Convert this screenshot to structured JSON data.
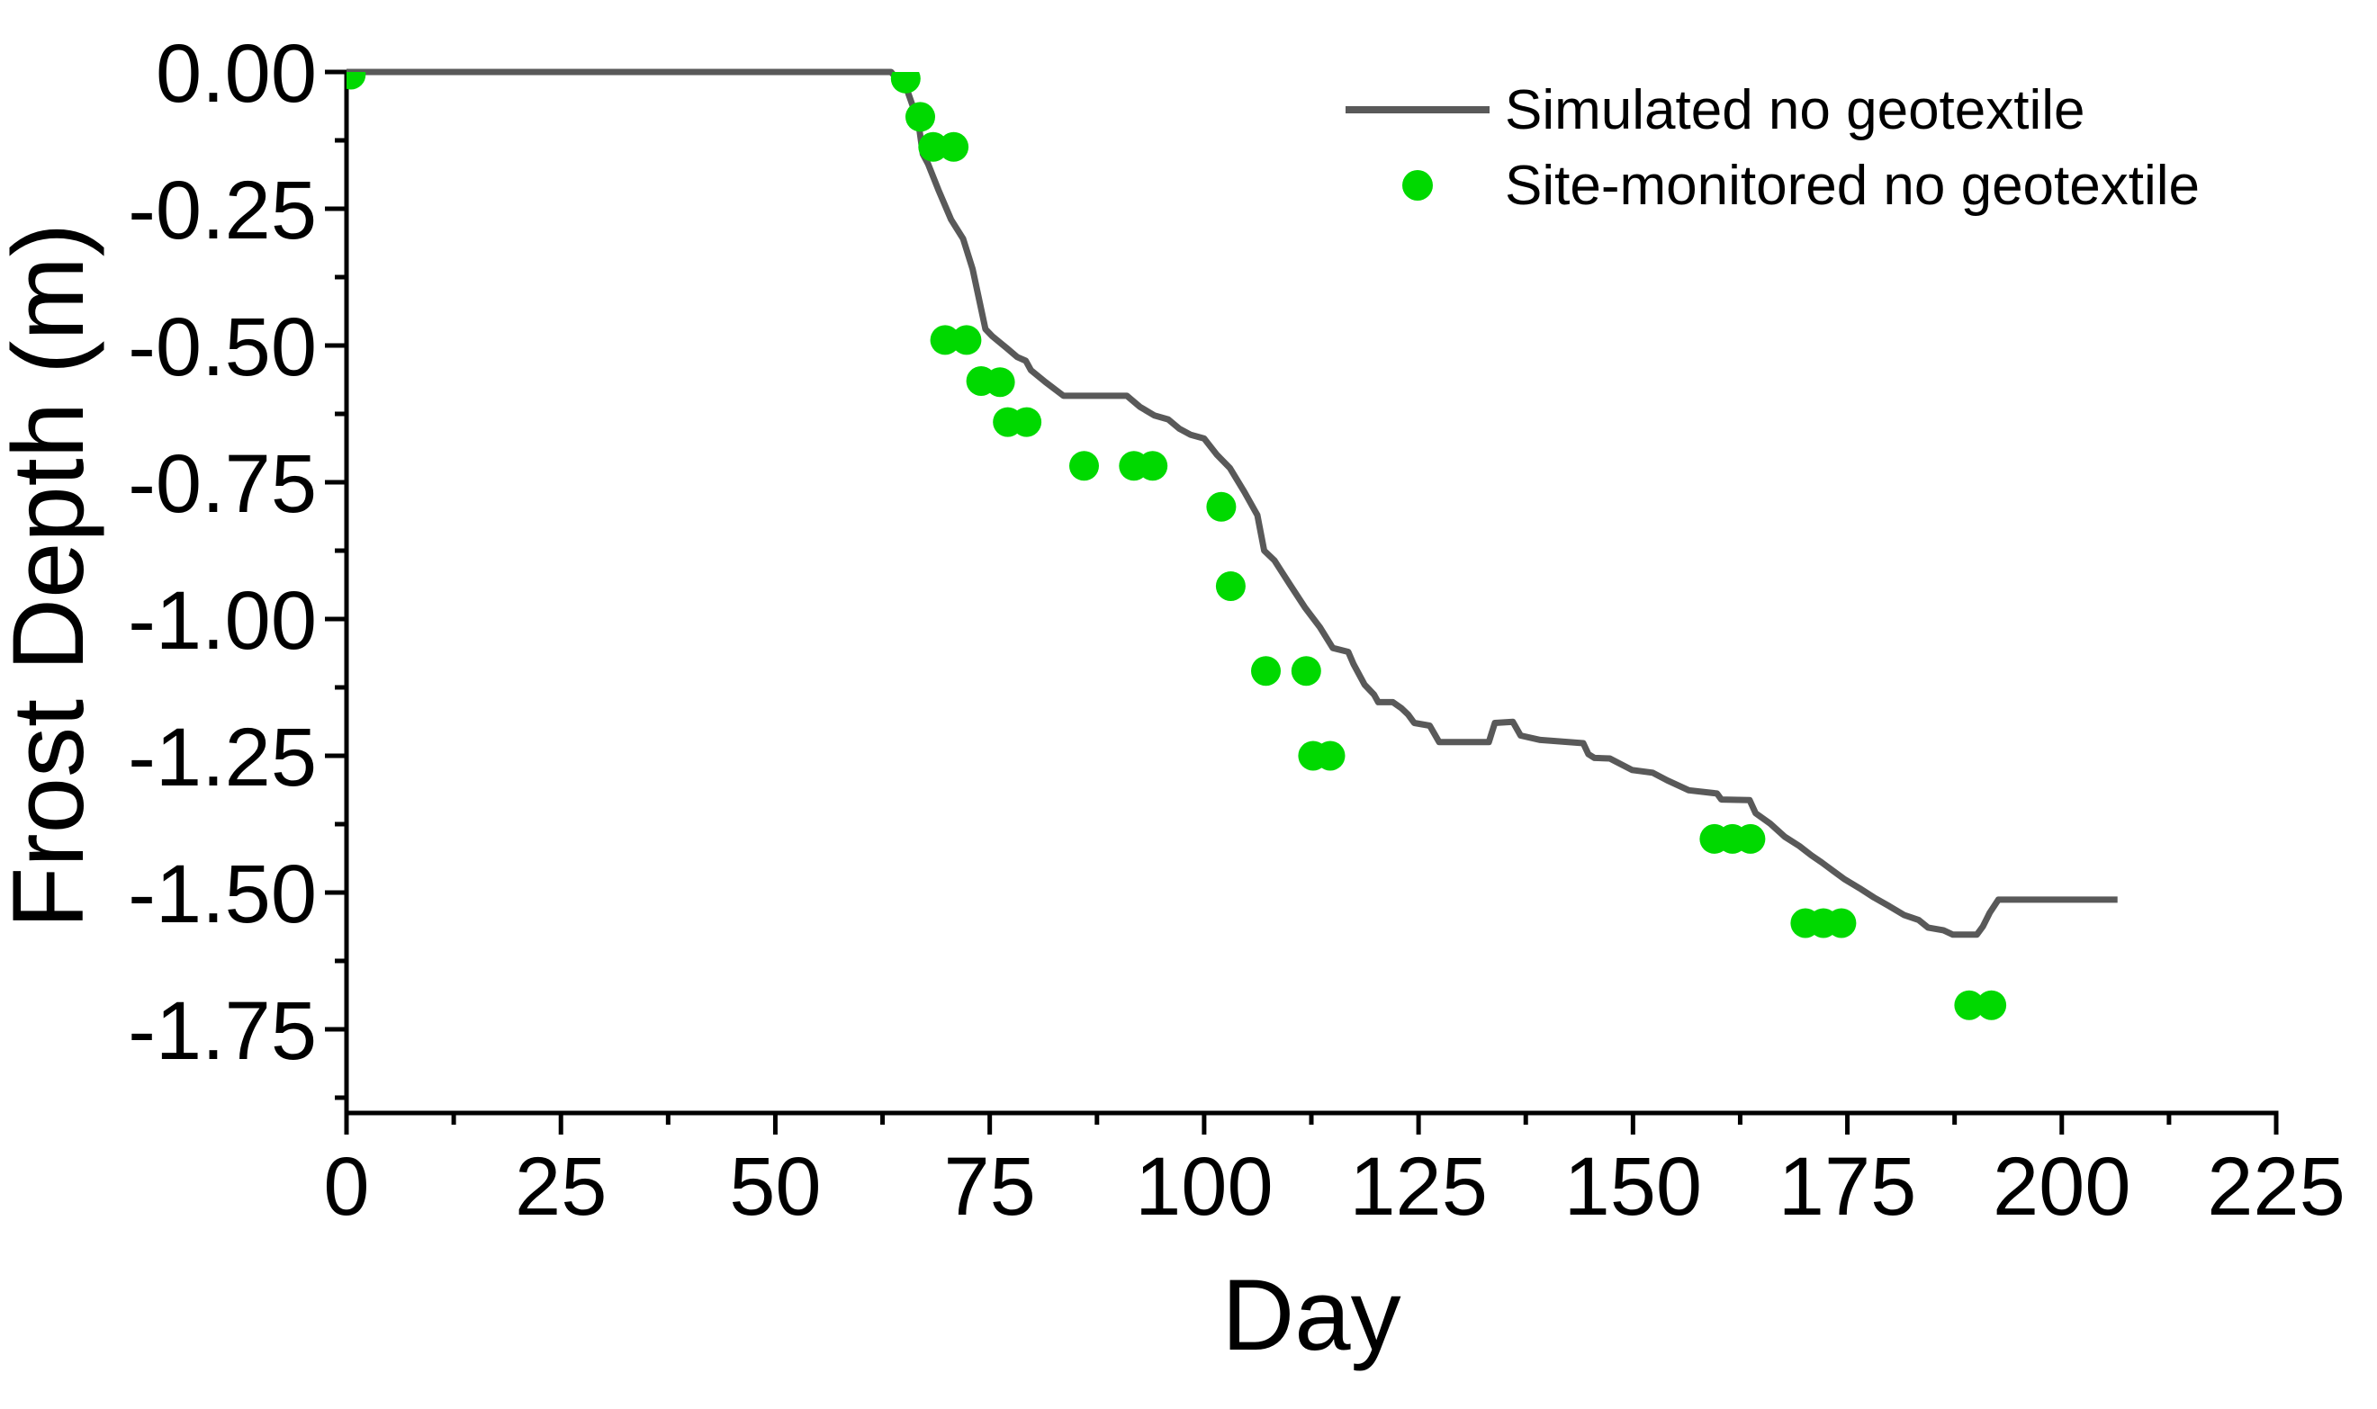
{
  "chart_data": {
    "type": "line",
    "title": "",
    "xlabel": "Day",
    "ylabel": "Frost Depth (m)",
    "xlim": [
      0,
      225
    ],
    "ylim": [
      -1.903,
      0
    ],
    "grid": false,
    "x_major_ticks": [
      0,
      25,
      50,
      75,
      100,
      125,
      150,
      175,
      200,
      225
    ],
    "x_minor_ticks": [
      12.5,
      37.5,
      62.5,
      87.5,
      112.5,
      137.5,
      162.5,
      187.5,
      212.5
    ],
    "y_major_ticks": [
      0,
      -0.25,
      -0.5,
      -0.75,
      -1,
      -1.25,
      -1.5,
      -1.75
    ],
    "y_minor_ticks": [
      -0.125,
      -0.375,
      -0.625,
      -0.875,
      -1.125,
      -1.375,
      -1.625,
      -1.875
    ],
    "y_tick_decimals": 2,
    "legend_position": "inside-top-right",
    "series": [
      {
        "name": "Simulated no geotextile",
        "type": "line",
        "color": "#595959",
        "stroke_width": 7,
        "points": [
          [
            0,
            0
          ],
          [
            63.5,
            0
          ],
          [
            64.3,
            -0.015
          ],
          [
            65.3,
            -0.03
          ],
          [
            66.2,
            -0.07
          ],
          [
            66.8,
            -0.105
          ],
          [
            67.2,
            -0.15
          ],
          [
            67.8,
            -0.168
          ],
          [
            69,
            -0.215
          ],
          [
            70.5,
            -0.27
          ],
          [
            71.9,
            -0.305
          ],
          [
            73,
            -0.36
          ],
          [
            74.5,
            -0.47
          ],
          [
            75.3,
            -0.483
          ],
          [
            77,
            -0.505
          ],
          [
            78.2,
            -0.521
          ],
          [
            79.2,
            -0.528
          ],
          [
            79.8,
            -0.545
          ],
          [
            81.5,
            -0.567
          ],
          [
            83.6,
            -0.592
          ],
          [
            91,
            -0.592
          ],
          [
            92.5,
            -0.612
          ],
          [
            94.2,
            -0.628
          ],
          [
            95.8,
            -0.635
          ],
          [
            97.1,
            -0.652
          ],
          [
            98.4,
            -0.663
          ],
          [
            100,
            -0.67
          ],
          [
            101.5,
            -0.7
          ],
          [
            103,
            -0.724
          ],
          [
            104.7,
            -0.768
          ],
          [
            106.2,
            -0.81
          ],
          [
            107,
            -0.875
          ],
          [
            108.2,
            -0.893
          ],
          [
            110,
            -0.937
          ],
          [
            111.8,
            -0.98
          ],
          [
            113.5,
            -1.015
          ],
          [
            115,
            -1.053
          ],
          [
            116.8,
            -1.06
          ],
          [
            117.4,
            -1.082
          ],
          [
            118.7,
            -1.12
          ],
          [
            119.8,
            -1.138
          ],
          [
            120.3,
            -1.152
          ],
          [
            122,
            -1.152
          ],
          [
            123,
            -1.163
          ],
          [
            123.8,
            -1.175
          ],
          [
            124.5,
            -1.19
          ],
          [
            126.3,
            -1.195
          ],
          [
            127.4,
            -1.225
          ],
          [
            133.2,
            -1.225
          ],
          [
            133.9,
            -1.19
          ],
          [
            136,
            -1.188
          ],
          [
            136.9,
            -1.213
          ],
          [
            139.2,
            -1.221
          ],
          [
            144.2,
            -1.227
          ],
          [
            144.8,
            -1.247
          ],
          [
            145.5,
            -1.254
          ],
          [
            147.3,
            -1.255
          ],
          [
            149.9,
            -1.276
          ],
          [
            152.3,
            -1.281
          ],
          [
            154,
            -1.295
          ],
          [
            156.5,
            -1.313
          ],
          [
            159.8,
            -1.319
          ],
          [
            160.3,
            -1.33
          ],
          [
            163.6,
            -1.331
          ],
          [
            164.3,
            -1.355
          ],
          [
            166,
            -1.374
          ],
          [
            167.7,
            -1.398
          ],
          [
            169.4,
            -1.415
          ],
          [
            170.8,
            -1.432
          ],
          [
            172,
            -1.445
          ],
          [
            173.3,
            -1.46
          ],
          [
            174.7,
            -1.476
          ],
          [
            176.4,
            -1.492
          ],
          [
            178.1,
            -1.509
          ],
          [
            179.9,
            -1.525
          ],
          [
            181.6,
            -1.541
          ],
          [
            183.3,
            -1.55
          ],
          [
            184.4,
            -1.564
          ],
          [
            186.2,
            -1.569
          ],
          [
            187.3,
            -1.577
          ],
          [
            190.1,
            -1.577
          ],
          [
            190.8,
            -1.562
          ],
          [
            191.6,
            -1.537
          ],
          [
            192.6,
            -1.513
          ],
          [
            206.5,
            -1.513
          ]
        ]
      },
      {
        "name": "Site-monitored no geotextile",
        "type": "scatter",
        "color": "#00d900",
        "radius": 16.5,
        "points": [
          [
            0.5,
            -0.005
          ],
          [
            65.2,
            -0.012
          ],
          [
            66.9,
            -0.082
          ],
          [
            68.4,
            -0.137
          ],
          [
            70.8,
            -0.137
          ],
          [
            69.8,
            -0.49
          ],
          [
            72.3,
            -0.49
          ],
          [
            74,
            -0.565
          ],
          [
            76.2,
            -0.567
          ],
          [
            77.1,
            -0.64
          ],
          [
            79.3,
            -0.64
          ],
          [
            86,
            -0.72
          ],
          [
            91.8,
            -0.72
          ],
          [
            94,
            -0.72
          ],
          [
            102,
            -0.795
          ],
          [
            103.1,
            -0.94
          ],
          [
            107.2,
            -1.095
          ],
          [
            111.9,
            -1.095
          ],
          [
            112.7,
            -1.25
          ],
          [
            114.7,
            -1.25
          ],
          [
            159.5,
            -1.402
          ],
          [
            161.6,
            -1.402
          ],
          [
            163.7,
            -1.402
          ],
          [
            170.1,
            -1.556
          ],
          [
            172.2,
            -1.556
          ],
          [
            174.3,
            -1.556
          ],
          [
            189.2,
            -1.706
          ],
          [
            191.8,
            -1.706
          ]
        ]
      }
    ]
  },
  "legend": {
    "items": [
      {
        "label": "Simulated no geotextile",
        "marker": "line",
        "color": "#595959"
      },
      {
        "label": "Site-monitored no geotextile",
        "marker": "circle",
        "color": "#00d900"
      }
    ]
  },
  "axes": {
    "x_title": "Day",
    "y_title": "Frost Depth (m)"
  },
  "colors": {
    "background": "#ffffff",
    "axis": "#000000",
    "simulated_line": "#595959",
    "monitored_dot": "#00d900"
  }
}
